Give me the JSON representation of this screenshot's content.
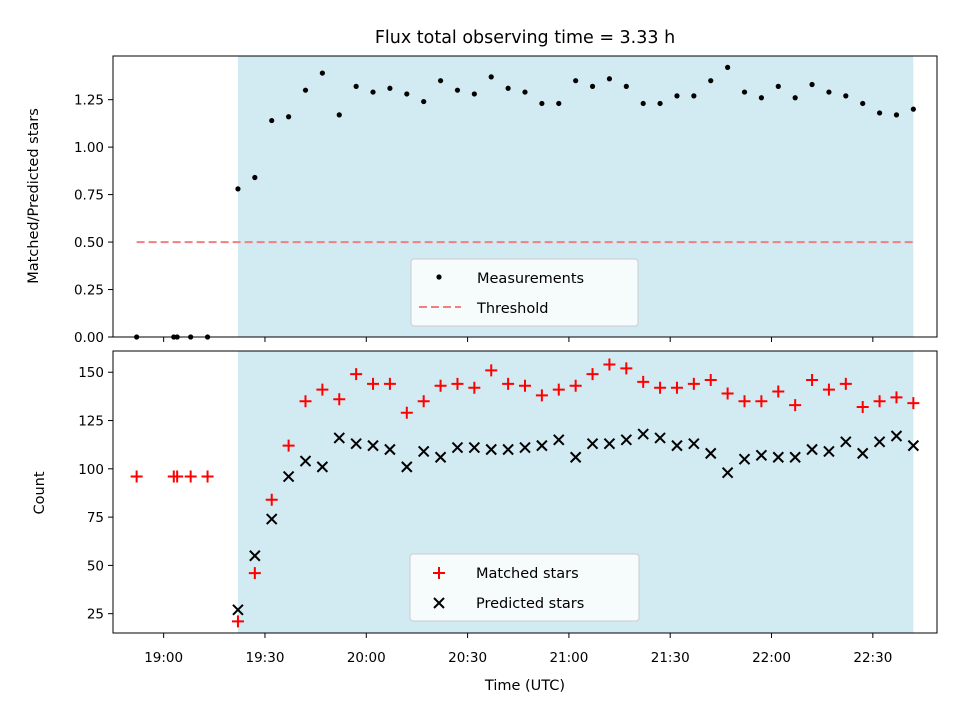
{
  "chart_data": [
    {
      "type": "scatter",
      "title": "Flux total observing time = 3.33 h",
      "xlabel": "",
      "ylabel": "Matched/Predicted stars",
      "xlim": [
        "18:45",
        "22:49"
      ],
      "ylim": [
        0,
        1.48
      ],
      "yticks": [
        "0.00",
        "0.25",
        "0.50",
        "0.75",
        "1.00",
        "1.25"
      ],
      "grid": false,
      "legend_placement": "lower center",
      "shaded_interval": {
        "from": "19:22",
        "to": "22:42",
        "color": "#add8e6"
      },
      "threshold": {
        "name": "Threshold",
        "value": 0.5,
        "from": "18:52",
        "to": "22:42",
        "color": "#f08080",
        "style": "dashed"
      },
      "series": [
        {
          "name": "Measurements",
          "color": "#000000",
          "marker": "dot",
          "x": [
            "18:52",
            "19:03",
            "19:04",
            "19:08",
            "19:13",
            "19:22",
            "19:27",
            "19:32",
            "19:37",
            "19:42",
            "19:47",
            "19:52",
            "19:57",
            "20:02",
            "20:07",
            "20:12",
            "20:17",
            "20:22",
            "20:27",
            "20:32",
            "20:37",
            "20:42",
            "20:47",
            "20:52",
            "20:57",
            "21:02",
            "21:07",
            "21:12",
            "21:17",
            "21:22",
            "21:27",
            "21:32",
            "21:37",
            "21:42",
            "21:47",
            "21:52",
            "21:57",
            "22:02",
            "22:07",
            "22:12",
            "22:17",
            "22:22",
            "22:27",
            "22:32",
            "22:37",
            "22:42"
          ],
          "y": [
            0.0,
            0.0,
            0.0,
            0.0,
            0.0,
            0.78,
            0.84,
            1.14,
            1.16,
            1.3,
            1.39,
            1.17,
            1.32,
            1.29,
            1.31,
            1.28,
            1.24,
            1.35,
            1.3,
            1.28,
            1.37,
            1.31,
            1.29,
            1.23,
            1.23,
            1.35,
            1.32,
            1.36,
            1.32,
            1.23,
            1.23,
            1.27,
            1.27,
            1.35,
            1.42,
            1.29,
            1.26,
            1.32,
            1.26,
            1.33,
            1.29,
            1.27,
            1.23,
            1.18,
            1.17,
            1.2
          ]
        }
      ]
    },
    {
      "type": "scatter",
      "title": "",
      "xlabel": "Time (UTC)",
      "ylabel": "Count",
      "xlim": [
        "18:45",
        "22:49"
      ],
      "ylim": [
        15,
        161
      ],
      "xticks": [
        "19:00",
        "19:30",
        "20:00",
        "20:30",
        "21:00",
        "21:30",
        "22:00",
        "22:30"
      ],
      "yticks": [
        "25",
        "50",
        "75",
        "100",
        "125",
        "150"
      ],
      "grid": false,
      "legend_placement": "lower center",
      "shaded_interval": {
        "from": "19:22",
        "to": "22:42",
        "color": "#add8e6"
      },
      "series": [
        {
          "name": "Matched stars",
          "color": "#ff0000",
          "marker": "plus",
          "x": [
            "18:52",
            "19:03",
            "19:04",
            "19:08",
            "19:13",
            "19:22",
            "19:27",
            "19:32",
            "19:37",
            "19:42",
            "19:47",
            "19:52",
            "19:57",
            "20:02",
            "20:07",
            "20:12",
            "20:17",
            "20:22",
            "20:27",
            "20:32",
            "20:37",
            "20:42",
            "20:47",
            "20:52",
            "20:57",
            "21:02",
            "21:07",
            "21:12",
            "21:17",
            "21:22",
            "21:27",
            "21:32",
            "21:37",
            "21:42",
            "21:47",
            "21:52",
            "21:57",
            "22:02",
            "22:07",
            "22:12",
            "22:17",
            "22:22",
            "22:27",
            "22:32",
            "22:37",
            "22:42"
          ],
          "y": [
            96,
            96,
            96,
            96,
            96,
            21,
            46,
            84,
            112,
            135,
            141,
            136,
            149,
            144,
            144,
            129,
            135,
            143,
            144,
            142,
            151,
            144,
            143,
            138,
            141,
            143,
            149,
            154,
            152,
            145,
            142,
            142,
            144,
            146,
            139,
            135,
            135,
            140,
            133,
            146,
            141,
            144,
            132,
            135,
            137,
            134
          ]
        },
        {
          "name": "Predicted stars",
          "color": "#000000",
          "marker": "x",
          "x": [
            "19:22",
            "19:27",
            "19:32",
            "19:37",
            "19:42",
            "19:47",
            "19:52",
            "19:57",
            "20:02",
            "20:07",
            "20:12",
            "20:17",
            "20:22",
            "20:27",
            "20:32",
            "20:37",
            "20:42",
            "20:47",
            "20:52",
            "20:57",
            "21:02",
            "21:07",
            "21:12",
            "21:17",
            "21:22",
            "21:27",
            "21:32",
            "21:37",
            "21:42",
            "21:47",
            "21:52",
            "21:57",
            "22:02",
            "22:07",
            "22:12",
            "22:17",
            "22:22",
            "22:27",
            "22:32",
            "22:37",
            "22:42"
          ],
          "y": [
            27,
            55,
            74,
            96,
            104,
            101,
            116,
            113,
            112,
            110,
            101,
            109,
            106,
            111,
            111,
            110,
            110,
            111,
            112,
            115,
            106,
            113,
            113,
            115,
            118,
            116,
            112,
            113,
            108,
            98,
            105,
            107,
            106,
            106,
            110,
            109,
            114,
            108,
            114,
            117,
            112
          ]
        }
      ]
    }
  ]
}
